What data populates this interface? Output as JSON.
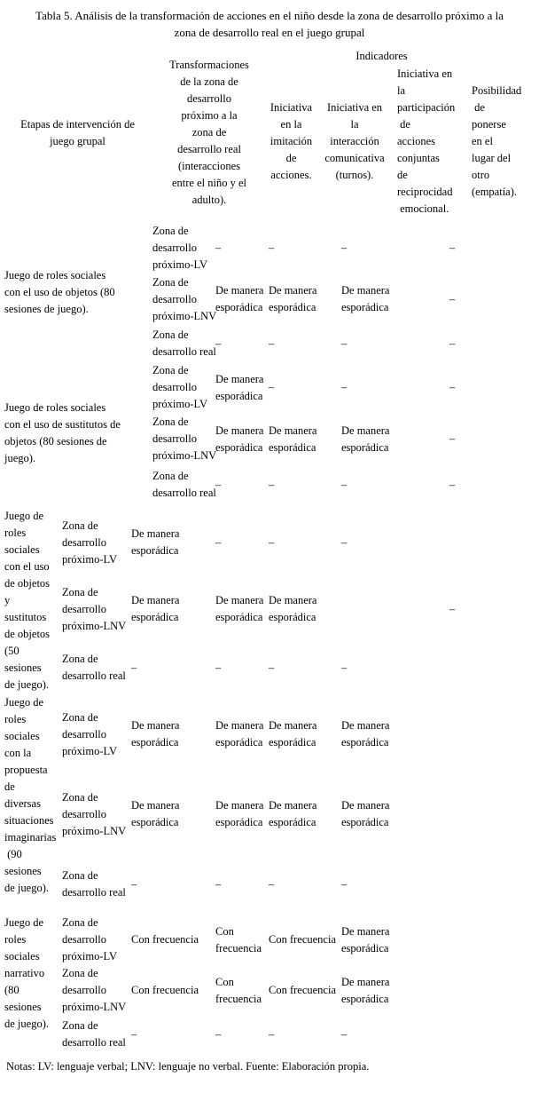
{
  "title": "Tabla 5. Análisis de la transformación de acciones en el niño desde la zona de desarrollo próximo a la\nzona de desarrollo real en el juego grupal",
  "table": {
    "header": {
      "etapas": "Etapas de intervención de\njuego grupal",
      "transformaciones": "Transformaciones\nde la zona de\ndesarrollo\npróximo a la\nzona de\ndesarrollo real\n(interacciones\nentre el niño y el\nadulto).",
      "indicadores_group": "Indicadores",
      "ind_imitacion": "Iniciativa\nen la\nimitación\nde\nacciones.",
      "ind_interaccion": "Iniciativa en\nla\ninteracción\ncomunicativa\n(turnos).",
      "ind_participacion": "Iniciativa en\nla\nparticipación\n de\nacciones\nconjuntas\nde\nreciprocidad\n emocional.",
      "ind_posibilidad": "Posibilidad\n de\nponerse\nen el\nlugar del\notro\n(empatía)."
    },
    "groups": [
      {
        "etapa": "Juego de roles sociales\ncon el uso de objetos (80\nsesiones de juego).",
        "rows": [
          {
            "zona": "Zona de\ndesarrollo\npróximo-LV",
            "c1": "–",
            "c2": "–",
            "c3": "–",
            "c4": "–"
          },
          {
            "zona": "Zona de\ndesarrollo\npróximo-LNV",
            "c1": "De manera esporádica",
            "c2": "De manera esporádica",
            "c3": "De manera esporádica",
            "c4": "–"
          },
          {
            "zona": "Zona de\ndesarrollo real",
            "c1": "–",
            "c2": "–",
            "c3": "–",
            "c4": "–"
          }
        ]
      },
      {
        "etapa": "Juego de roles sociales\ncon el uso de sustitutos de\nobjetos (80 sesiones de\njuego).",
        "rows": [
          {
            "zona": "Zona de\ndesarrollo\npróximo-LV",
            "c1": "De manera esporádica",
            "c2": "–",
            "c3": "–",
            "c4": "–"
          },
          {
            "zona": "Zona de\ndesarrollo\npróximo-LNV",
            "c1": "De manera esporádica",
            "c2": "De manera esporádica",
            "c3": "De manera esporádica",
            "c4": "–"
          },
          {
            "zona": "Zona de\ndesarrollo real",
            "c1": "–",
            "c2": "–",
            "c3": "–",
            "c4": "–"
          }
        ]
      },
      {
        "etapa": "Juego de\nroles\nsociales\ncon el uso\nde objetos\ny\nsustitutos\nde objetos\n(50\nsesiones\nde juego).",
        "rows": [
          {
            "zona": "Zona de\ndesarrollo\npróximo-LV",
            "c1": "De manera esporádica",
            "c2": "–",
            "c3": "–",
            "c4": "–"
          },
          {
            "zona": "Zona de\ndesarrollo\npróximo-LNV",
            "c1": "De manera esporádica",
            "c2": "De manera esporádica",
            "c3": "De manera esporádica",
            "c4": "–"
          },
          {
            "zona": "Zona de\ndesarrollo real",
            "c1": "–",
            "c2": "–",
            "c3": "–",
            "c4": "–"
          }
        ]
      },
      {
        "etapa": "Juego de\nroles\nsociales\ncon la\npropuesta\nde\ndiversas\nsituaciones\nimaginarias\n (90\nsesiones\nde juego).",
        "rows": [
          {
            "zona": "Zona de\ndesarrollo\npróximo-LV",
            "c1": "De manera esporádica",
            "c2": "De manera esporádica",
            "c3": "De manera esporádica",
            "c4": "De manera esporádica"
          },
          {
            "zona": "Zona de\ndesarrollo\npróximo-LNV",
            "c1": "De manera esporádica",
            "c2": "De manera esporádica",
            "c3": "De manera esporádica",
            "c4": "De manera esporádica"
          },
          {
            "zona": "Zona de\ndesarrollo real",
            "c1": "–",
            "c2": "–",
            "c3": "–",
            "c4": "–"
          }
        ]
      },
      {
        "etapa": "Juego de\nroles\nsociales\nnarrativo\n(80\nsesiones\nde juego).",
        "rows": [
          {
            "zona": "Zona de\ndesarrollo\npróximo-LV",
            "c1": "Con frecuencia",
            "c2": "Con frecuencia",
            "c3": "Con frecuencia",
            "c4": "De manera esporádica"
          },
          {
            "zona": "Zona de\ndesarrollo\npróximo-LNV",
            "c1": "Con frecuencia",
            "c2": "Con frecuencia",
            "c3": "Con frecuencia",
            "c4": "De manera esporádica"
          },
          {
            "zona": "Zona de\ndesarrollo real",
            "c1": "–",
            "c2": "–",
            "c3": "–",
            "c4": "–"
          }
        ]
      }
    ],
    "notes": "Notas: LV: lenguaje verbal; LNV: lenguaje no verbal. Fuente: Elaboración propia."
  }
}
